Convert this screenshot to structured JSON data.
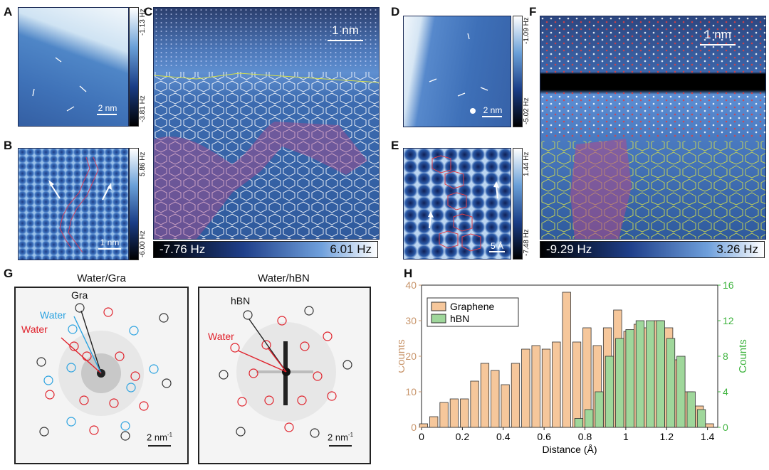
{
  "panels": {
    "A": {
      "label": "A",
      "cbar_top": "-1.13 Hz",
      "cbar_bottom": "-3.81 Hz",
      "scale": "2 nm"
    },
    "B": {
      "label": "B",
      "cbar_top": "5.86 Hz",
      "cbar_bottom": "-6.00 Hz",
      "scale": "1 nm"
    },
    "C": {
      "label": "C",
      "scale": "1 nm",
      "cbar_left": "-7.76 Hz",
      "cbar_right": "6.01 Hz"
    },
    "D": {
      "label": "D",
      "cbar_top": "-1.09 Hz",
      "cbar_bottom": "-5.02 Hz",
      "scale": "2 nm"
    },
    "E": {
      "label": "E",
      "cbar_top": "1.44 Hz",
      "cbar_bottom": "-7.48 Hz",
      "scale": "5 Å"
    },
    "F": {
      "label": "F",
      "scale": "1 nm",
      "cbar_left": "-9.29 Hz",
      "cbar_right": "3.26 Hz"
    },
    "G": {
      "label": "G",
      "left_title": "Water/Gra",
      "right_title": "Water/hBN",
      "left_labels": {
        "gra": "Gra",
        "water_blue": "Water",
        "water_red": "Water"
      },
      "right_labels": {
        "hbn": "hBN",
        "water_red": "Water"
      },
      "scale": "2 nm",
      "scale_sup": "-1"
    },
    "H": {
      "label": "H"
    }
  },
  "colors": {
    "graphene": "#f6c79b",
    "hbn": "#9fd79b",
    "left_axis": "#c8956b",
    "right_axis": "#3fb43f",
    "water_blue": "#2aa2e0",
    "water_red": "#e0212b"
  },
  "chart_data": {
    "type": "bar",
    "xlabel": "Distance (Å)",
    "ylabel_left": "Counts",
    "ylabel_right": "Counts",
    "xlim": [
      0,
      1.45
    ],
    "xticks": [
      0,
      0.2,
      0.4,
      0.6,
      0.8,
      1.0,
      1.2,
      1.4
    ],
    "xtick_labels": [
      "0",
      "0.2",
      "0.4",
      "0.6",
      "0.8",
      "1",
      "1.2",
      "1.4"
    ],
    "ylim_left": [
      0,
      40
    ],
    "yticks_left": [
      0,
      10,
      20,
      30,
      40
    ],
    "ylim_right": [
      0,
      16
    ],
    "yticks_right": [
      0,
      4,
      8,
      12,
      16
    ],
    "legend_position": "top-left",
    "series": [
      {
        "name": "Graphene",
        "axis": "left",
        "x": [
          0.01,
          0.06,
          0.11,
          0.16,
          0.21,
          0.26,
          0.31,
          0.36,
          0.41,
          0.46,
          0.51,
          0.56,
          0.61,
          0.66,
          0.71,
          0.76,
          0.81,
          0.86,
          0.91,
          0.96,
          1.01,
          1.06,
          1.11,
          1.16,
          1.21,
          1.26,
          1.31,
          1.36,
          1.41
        ],
        "values": [
          1,
          3,
          7,
          8,
          8,
          13,
          18,
          16,
          12,
          18,
          22,
          23,
          22,
          24,
          38,
          24,
          28,
          23,
          28,
          33,
          27,
          29,
          28,
          30,
          28,
          19,
          10,
          6,
          1
        ]
      },
      {
        "name": "hBN",
        "axis": "right",
        "x": [
          0.77,
          0.82,
          0.87,
          0.92,
          0.97,
          1.02,
          1.07,
          1.12,
          1.17,
          1.22,
          1.27,
          1.32,
          1.37
        ],
        "values": [
          1,
          2,
          4,
          8,
          10,
          11,
          12,
          12,
          12,
          10,
          8,
          4,
          2
        ]
      }
    ]
  }
}
